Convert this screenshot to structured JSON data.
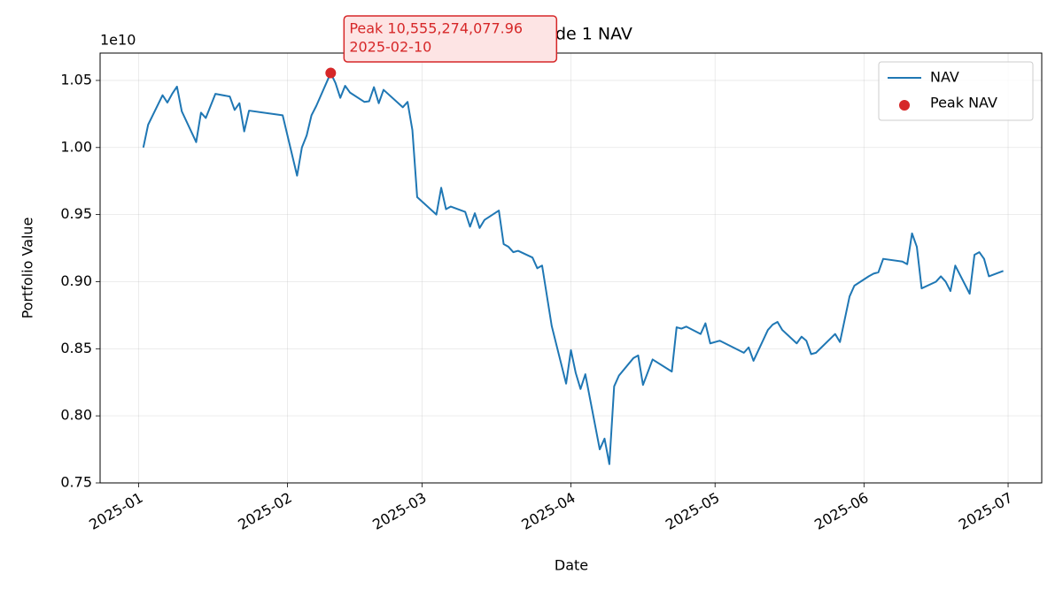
{
  "chart_data": {
    "type": "line",
    "title": "Episode 1 NAV",
    "x_label": "Date",
    "y_label": "Portfolio Value",
    "y_offset_label": "1e10",
    "xlim": [
      "2024-12-24",
      "2025-07-08"
    ],
    "ylim": [
      7500000000.0,
      10704000000.0
    ],
    "xticks": [
      {
        "value": "2025-01-01",
        "label": "2025-01"
      },
      {
        "value": "2025-02-01",
        "label": "2025-02"
      },
      {
        "value": "2025-03-01",
        "label": "2025-03"
      },
      {
        "value": "2025-04-01",
        "label": "2025-04"
      },
      {
        "value": "2025-05-01",
        "label": "2025-05"
      },
      {
        "value": "2025-06-01",
        "label": "2025-06"
      },
      {
        "value": "2025-07-01",
        "label": "2025-07"
      }
    ],
    "yticks": [
      {
        "value": 7500000000.0,
        "label": "0.75"
      },
      {
        "value": 8000000000.0,
        "label": "0.80"
      },
      {
        "value": 8500000000.0,
        "label": "0.85"
      },
      {
        "value": 9000000000.0,
        "label": "0.90"
      },
      {
        "value": 9500000000.0,
        "label": "0.95"
      },
      {
        "value": 10000000000.0,
        "label": "1.00"
      },
      {
        "value": 10500000000.0,
        "label": "1.05"
      }
    ],
    "grid": true,
    "legend": "upper right",
    "series": [
      {
        "name": "NAV",
        "type": "line",
        "color": "#1f77b4",
        "x": [
          "2025-01-02",
          "2025-01-03",
          "2025-01-06",
          "2025-01-07",
          "2025-01-08",
          "2025-01-09",
          "2025-01-10",
          "2025-01-13",
          "2025-01-14",
          "2025-01-15",
          "2025-01-16",
          "2025-01-17",
          "2025-01-20",
          "2025-01-21",
          "2025-01-22",
          "2025-01-23",
          "2025-01-24",
          "2025-01-31",
          "2025-02-03",
          "2025-02-04",
          "2025-02-05",
          "2025-02-06",
          "2025-02-07",
          "2025-02-10",
          "2025-02-11",
          "2025-02-12",
          "2025-02-13",
          "2025-02-14",
          "2025-02-17",
          "2025-02-18",
          "2025-02-19",
          "2025-02-20",
          "2025-02-21",
          "2025-02-25",
          "2025-02-26",
          "2025-02-27",
          "2025-02-28",
          "2025-03-04",
          "2025-03-05",
          "2025-03-06",
          "2025-03-07",
          "2025-03-10",
          "2025-03-11",
          "2025-03-12",
          "2025-03-13",
          "2025-03-14",
          "2025-03-17",
          "2025-03-18",
          "2025-03-19",
          "2025-03-20",
          "2025-03-21",
          "2025-03-24",
          "2025-03-25",
          "2025-03-26",
          "2025-03-28",
          "2025-03-31",
          "2025-04-01",
          "2025-04-02",
          "2025-04-03",
          "2025-04-04",
          "2025-04-07",
          "2025-04-08",
          "2025-04-09",
          "2025-04-10",
          "2025-04-11",
          "2025-04-14",
          "2025-04-15",
          "2025-04-16",
          "2025-04-18",
          "2025-04-22",
          "2025-04-23",
          "2025-04-24",
          "2025-04-25",
          "2025-04-28",
          "2025-04-29",
          "2025-04-30",
          "2025-05-02",
          "2025-05-07",
          "2025-05-08",
          "2025-05-09",
          "2025-05-12",
          "2025-05-13",
          "2025-05-14",
          "2025-05-15",
          "2025-05-18",
          "2025-05-19",
          "2025-05-20",
          "2025-05-21",
          "2025-05-22",
          "2025-05-26",
          "2025-05-27",
          "2025-05-29",
          "2025-05-30",
          "2025-06-02",
          "2025-06-03",
          "2025-06-04",
          "2025-06-05",
          "2025-06-09",
          "2025-06-10",
          "2025-06-11",
          "2025-06-12",
          "2025-06-13",
          "2025-06-16",
          "2025-06-17",
          "2025-06-18",
          "2025-06-19",
          "2025-06-20",
          "2025-06-23",
          "2025-06-24",
          "2025-06-25",
          "2025-06-26",
          "2025-06-27",
          "2025-06-30"
        ],
        "values": [
          10000000000.0,
          10170000000.0,
          10390000000.0,
          10335000000.0,
          10400000000.0,
          10454000000.0,
          10270000000.0,
          10040000000.0,
          10260000000.0,
          10220000000.0,
          10310000000.0,
          10400000000.0,
          10380000000.0,
          10280000000.0,
          10330000000.0,
          10120000000.0,
          10275000000.0,
          10240000000.0,
          9790000000.0,
          10000000000.0,
          10090000000.0,
          10240000000.0,
          10310000000.0,
          10555274077.96,
          10480000000.0,
          10370000000.0,
          10460000000.0,
          10410000000.0,
          10340000000.0,
          10345000000.0,
          10450000000.0,
          10330000000.0,
          10430000000.0,
          10300000000.0,
          10340000000.0,
          10130000000.0,
          9630000000.0,
          9500000000.0,
          9700000000.0,
          9540000000.0,
          9560000000.0,
          9520000000.0,
          9410000000.0,
          9510000000.0,
          9400000000.0,
          9460000000.0,
          9530000000.0,
          9280000000.0,
          9260000000.0,
          9220000000.0,
          9230000000.0,
          9180000000.0,
          9100000000.0,
          9120000000.0,
          8670000000.0,
          8240000000.0,
          8490000000.0,
          8320000000.0,
          8200000000.0,
          8310000000.0,
          7750000000.0,
          7830000000.0,
          7640000000.0,
          8220000000.0,
          8300000000.0,
          8430000000.0,
          8450000000.0,
          8230000000.0,
          8420000000.0,
          8330000000.0,
          8660000000.0,
          8650000000.0,
          8665000000.0,
          8610000000.0,
          8690000000.0,
          8540000000.0,
          8560000000.0,
          8470000000.0,
          8510000000.0,
          8410000000.0,
          8640000000.0,
          8680000000.0,
          8700000000.0,
          8640000000.0,
          8540000000.0,
          8590000000.0,
          8560000000.0,
          8460000000.0,
          8470000000.0,
          8610000000.0,
          8550000000.0,
          8890000000.0,
          8970000000.0,
          9040000000.0,
          9060000000.0,
          9070000000.0,
          9170000000.0,
          9150000000.0,
          9130000000.0,
          9360000000.0,
          9260000000.0,
          8950000000.0,
          9000000000.0,
          9040000000.0,
          9000000000.0,
          8930000000.0,
          9120000000.0,
          8910000000.0,
          9200000000.0,
          9220000000.0,
          9170000000.0,
          9040000000.0,
          9080000000.0
        ]
      },
      {
        "name": "Peak NAV",
        "type": "scatter",
        "color": "#d62728",
        "x": [
          "2025-02-10"
        ],
        "values": [
          10555274077.96
        ]
      }
    ],
    "annotation": {
      "lines": [
        "Peak 10,555,274,077.96",
        "2025-02-10"
      ]
    }
  }
}
